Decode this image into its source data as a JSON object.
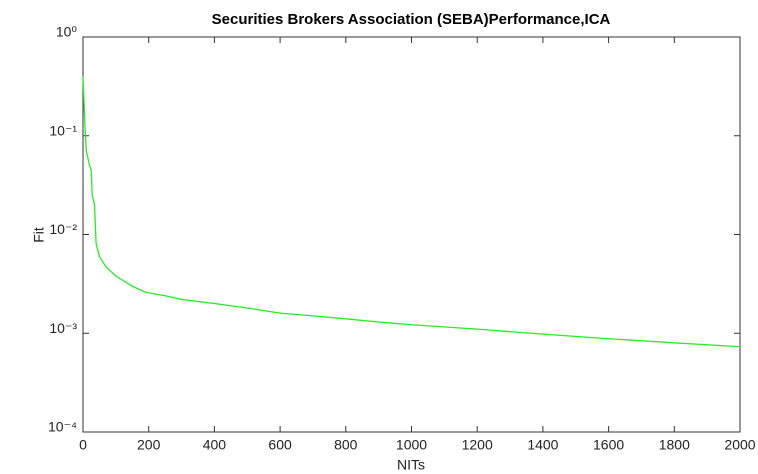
{
  "chart_data": {
    "type": "line",
    "title": "Securities Brokers Association (SEBA)Performance,ICA",
    "x_label": "NITs",
    "y_label": "Fit",
    "x": [
      0,
      5,
      10,
      20,
      25,
      28,
      35,
      40,
      50,
      70,
      100,
      150,
      190,
      250,
      300,
      400,
      500,
      600,
      700,
      800,
      900,
      1000,
      1200,
      1400,
      1600,
      1800,
      2000
    ],
    "series": [
      {
        "name": "ICA",
        "color": "#22ee22",
        "values": [
          0.4,
          0.15,
          0.07,
          0.05,
          0.045,
          0.025,
          0.02,
          0.008,
          0.006,
          0.0047,
          0.0038,
          0.003,
          0.0026,
          0.0024,
          0.0022,
          0.002,
          0.0018,
          0.0016,
          0.0015,
          0.0014,
          0.0013,
          0.00122,
          0.0011,
          0.00098,
          0.00088,
          0.0008,
          0.00073
        ]
      }
    ],
    "xlim": [
      0,
      2000
    ],
    "xticks": [
      0,
      200,
      400,
      600,
      800,
      1000,
      1200,
      1400,
      1600,
      1800,
      2000
    ],
    "ylim": [
      0.0001,
      1
    ],
    "yticks": [
      {
        "value": 0.0001,
        "label": "10⁻⁴"
      },
      {
        "value": 0.001,
        "label": "10⁻³"
      },
      {
        "value": 0.01,
        "label": "10⁻²"
      },
      {
        "value": 0.1,
        "label": "10⁻¹"
      },
      {
        "value": 1,
        "label": "10⁰"
      }
    ],
    "log_y": true,
    "grid": false
  }
}
